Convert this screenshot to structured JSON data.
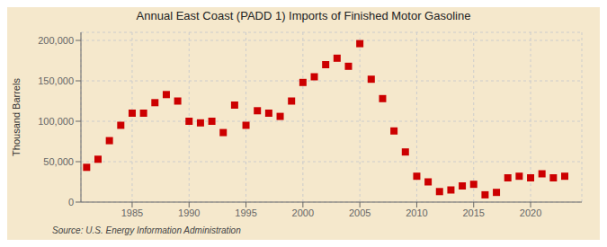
{
  "chart_data": {
    "type": "scatter",
    "title": "Annual East Coast (PADD 1) Imports of Finished Motor Gasoline",
    "ylabel": "Thousand Barrels",
    "annotations": [
      "Source: U.S. Energy Information Administration"
    ],
    "color": "#cc0000",
    "marker": "square",
    "grid": true,
    "xlim": [
      1980.5,
      2024.5
    ],
    "xticks": [
      1985,
      1990,
      1995,
      2000,
      2005,
      2010,
      2015,
      2020
    ],
    "ylim": [
      0,
      210000
    ],
    "yticks": [
      0,
      {
        "value": 50000,
        "label": "50,000"
      },
      {
        "value": 100000,
        "label": "100,000"
      },
      {
        "value": 150000,
        "label": "150,000"
      },
      {
        "value": 200000,
        "label": "200,000"
      }
    ],
    "x": [
      1981,
      1982,
      1983,
      1984,
      1985,
      1986,
      1987,
      1988,
      1989,
      1990,
      1991,
      1992,
      1993,
      1994,
      1995,
      1996,
      1997,
      1998,
      1999,
      2000,
      2001,
      2002,
      2003,
      2004,
      2005,
      2006,
      2007,
      2008,
      2009,
      2010,
      2011,
      2012,
      2013,
      2014,
      2015,
      2016,
      2017,
      2018,
      2019,
      2020,
      2021,
      2022,
      2023
    ],
    "values": [
      43000,
      53000,
      76000,
      95000,
      110000,
      110000,
      123000,
      133000,
      125000,
      100000,
      98000,
      100000,
      86000,
      120000,
      95000,
      113000,
      110000,
      106000,
      125000,
      148000,
      155000,
      170000,
      178000,
      168000,
      196000,
      152000,
      128000,
      88000,
      62000,
      32000,
      25000,
      13000,
      15000,
      20000,
      22000,
      9000,
      12000,
      30000,
      32000,
      30000,
      35000,
      30000,
      32000
    ]
  }
}
